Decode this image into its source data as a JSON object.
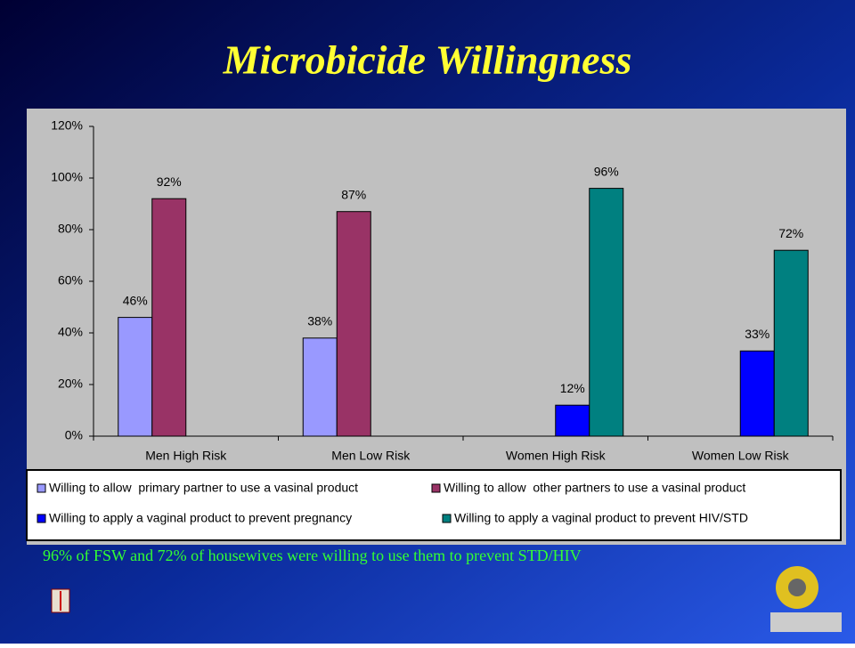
{
  "chart_data": {
    "type": "bar",
    "title": "Microbicide Willingness",
    "categories": [
      "Men High Risk",
      "Men Low  Risk",
      "Women High Risk",
      "Women Low  Risk"
    ],
    "series": [
      {
        "name": "Willing to allow  primary partner to use a vasinal product",
        "color": "#9999ff",
        "values": [
          46,
          38,
          null,
          null
        ],
        "value_labels": [
          "46%",
          "38%",
          null,
          null
        ]
      },
      {
        "name": "Willing to allow  other partners to use a vasinal product",
        "color": "#993366",
        "values": [
          92,
          87,
          null,
          null
        ],
        "value_labels": [
          "92%",
          "87%",
          null,
          null
        ]
      },
      {
        "name": "Willing to apply a vaginal product to prevent pregnancy",
        "color": "#0000ff",
        "values": [
          null,
          null,
          12,
          33
        ],
        "value_labels": [
          null,
          null,
          "12%",
          "33%"
        ]
      },
      {
        "name": "Willing to apply a vaginal product to prevent HIV/STD",
        "color": "#008080",
        "values": [
          null,
          null,
          96,
          72
        ],
        "value_labels": [
          null,
          null,
          "96%",
          "72%"
        ]
      }
    ],
    "ylim": [
      0,
      120
    ],
    "yticks": [
      {
        "value": 0,
        "label": "0%"
      },
      {
        "value": 20,
        "label": "20%"
      },
      {
        "value": 40,
        "label": "40%"
      },
      {
        "value": 60,
        "label": "60%"
      },
      {
        "value": 80,
        "label": "80%"
      },
      {
        "value": 100,
        "label": "100%"
      },
      {
        "value": 120,
        "label": "120%"
      }
    ],
    "grid": false,
    "legend": "bottom"
  },
  "footnote": "96% of FSW and 72% of housewives were willing to use them to prevent STD/HIV"
}
